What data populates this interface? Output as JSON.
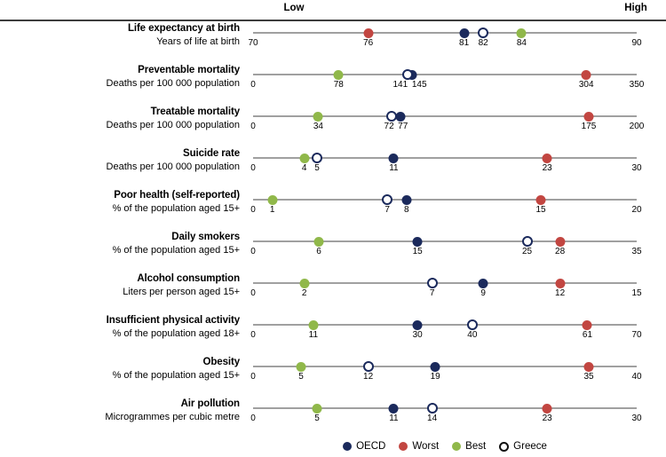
{
  "header": {
    "low_label": "Low",
    "high_label": "High"
  },
  "colors": {
    "oecd": "#1b2a5c",
    "worst": "#c24641",
    "best": "#90b84a",
    "greece_fill": "#ffffff",
    "greece_border": "#1b2a5c",
    "axis_line": "#a0a0a0",
    "header_rule": "#3d3d3d"
  },
  "legend": [
    {
      "key": "oecd",
      "label": "OECD",
      "marker": "filled"
    },
    {
      "key": "worst",
      "label": "Worst",
      "marker": "filled"
    },
    {
      "key": "best",
      "label": "Best",
      "marker": "filled"
    },
    {
      "key": "greece",
      "label": "Greece",
      "marker": "open"
    }
  ],
  "chart_data": {
    "type": "scatter",
    "subtype": "dot-plot-multiscale",
    "series_names": [
      "OECD",
      "Worst",
      "Best",
      "Greece"
    ],
    "legend_position": "bottom",
    "rows": [
      {
        "title": "Life expectancy at birth",
        "subtitle": "Years of life at birth",
        "min": 70,
        "max": 90,
        "oecd": 81,
        "worst": 76,
        "best": 84,
        "greece": 82
      },
      {
        "title": "Preventable mortality",
        "subtitle": "Deaths per 100 000 population",
        "min": 0,
        "max": 350,
        "oecd": 145,
        "worst": 304,
        "best": 78,
        "greece": 141
      },
      {
        "title": "Treatable mortality",
        "subtitle": "Deaths per 100 000 population",
        "min": 0,
        "max": 200,
        "oecd": 77,
        "worst": 175,
        "best": 34,
        "greece": 72
      },
      {
        "title": "Suicide rate",
        "subtitle": "Deaths per 100 000 population",
        "min": 0,
        "max": 30,
        "oecd": 11,
        "worst": 23,
        "best": 4,
        "greece": 5
      },
      {
        "title": "Poor health (self-reported)",
        "subtitle": "% of the population aged 15+",
        "min": 0,
        "max": 20,
        "oecd": 8,
        "worst": 15,
        "best": 1,
        "greece": 7
      },
      {
        "title": "Daily smokers",
        "subtitle": "% of the population aged 15+",
        "min": 0,
        "max": 35,
        "oecd": 15,
        "worst": 28,
        "best": 6,
        "greece": 25
      },
      {
        "title": "Alcohol consumption",
        "subtitle": "Liters per person aged 15+",
        "min": 0,
        "max": 15,
        "oecd": 9,
        "worst": 12,
        "best": 2,
        "greece": 7
      },
      {
        "title": "Insufficient physical activity",
        "subtitle": "% of the population aged 18+",
        "min": 0,
        "max": 70,
        "oecd": 30,
        "worst": 61,
        "best": 11,
        "greece": 40
      },
      {
        "title": "Obesity",
        "subtitle": "% of the population aged 15+",
        "min": 0,
        "max": 40,
        "oecd": 19,
        "worst": 35,
        "best": 5,
        "greece": 12
      },
      {
        "title": "Air pollution",
        "subtitle": "Microgrammes per cubic metre",
        "min": 0,
        "max": 30,
        "oecd": 11,
        "worst": 23,
        "best": 5,
        "greece": 14
      }
    ]
  }
}
